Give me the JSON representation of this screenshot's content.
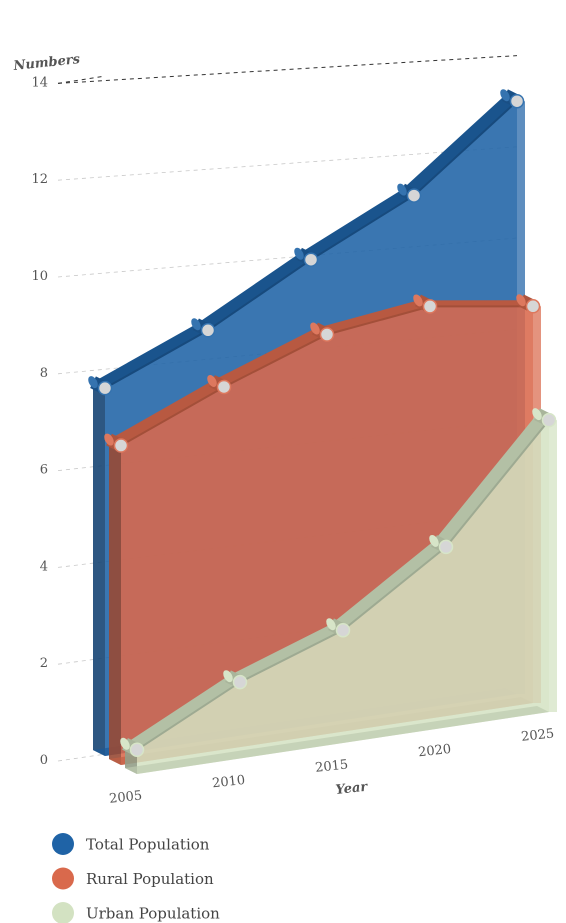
{
  "chart_data": {
    "type": "area",
    "title": "",
    "xlabel": "Year",
    "ylabel": "Numbers",
    "x": [
      2005,
      2010,
      2015,
      2020,
      2025
    ],
    "ylim": [
      0,
      14
    ],
    "y_ticks": [
      0,
      2,
      4,
      6,
      8,
      10,
      12,
      14
    ],
    "x_tick_labels": [
      "2005",
      "2010",
      "2015",
      "2020",
      "2025"
    ],
    "y_tick_labels": [
      "0",
      "2",
      "4",
      "6",
      "8",
      "10",
      "12",
      "14"
    ],
    "grid": true,
    "legend_position": "bottom-left",
    "series": [
      {
        "name": "Total Population",
        "color": "#1f63a6",
        "values": [
          7.6,
          8.6,
          9.9,
          11.1,
          13.0
        ]
      },
      {
        "name": "Rural Population",
        "color": "#d9694c",
        "values": [
          6.6,
          7.6,
          8.5,
          8.9,
          8.7
        ]
      },
      {
        "name": "Urban Population",
        "color": "#d3e2c2",
        "values": [
          0.5,
          1.6,
          2.4,
          3.9,
          6.4
        ]
      }
    ]
  }
}
